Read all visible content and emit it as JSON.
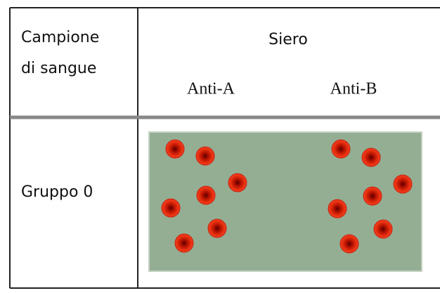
{
  "table": {
    "header": {
      "sample_label": [
        "Campione",
        "di sangue"
      ],
      "serum_label": "Siero",
      "columns": [
        "Anti-A",
        "Anti-B"
      ]
    },
    "rows": [
      {
        "label": "Gruppo 0"
      }
    ]
  }
}
